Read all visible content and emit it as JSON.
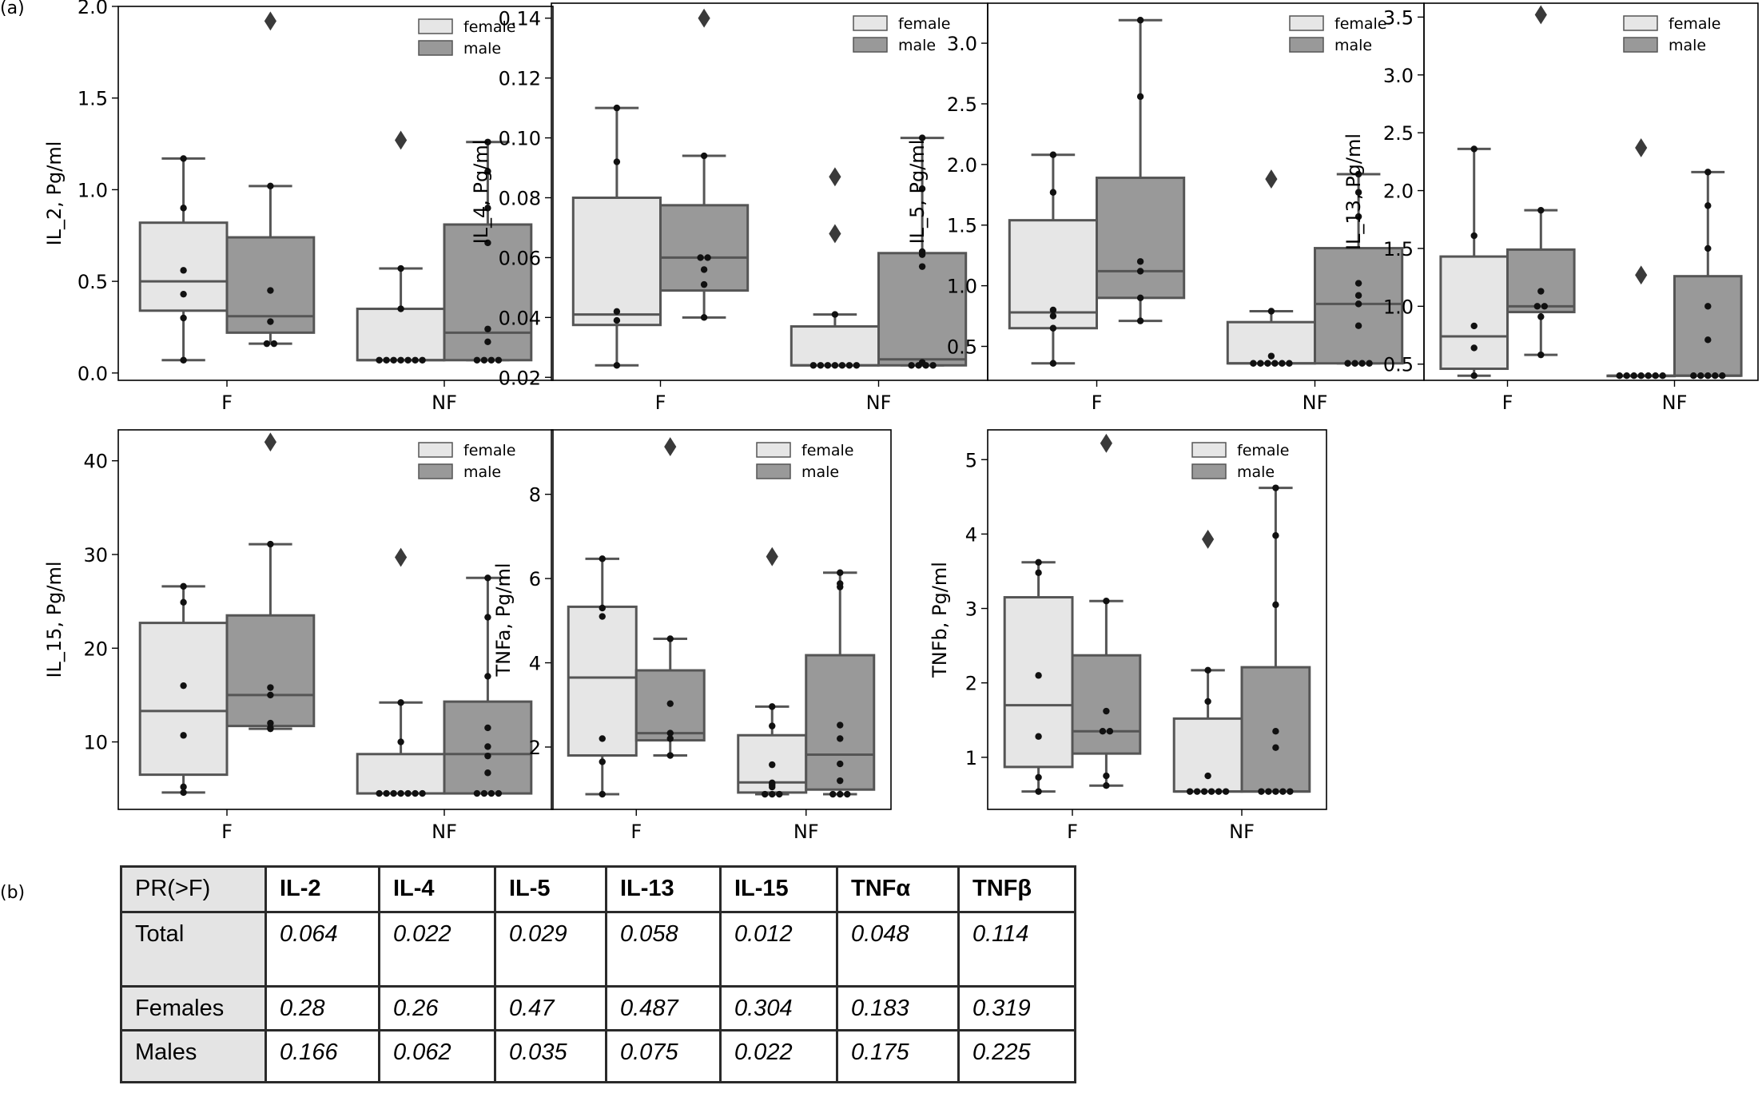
{
  "panel_labels": {
    "a": "(a)",
    "b": "(b)"
  },
  "legend": {
    "female": "female",
    "male": "male"
  },
  "colors": {
    "female": "#e6e6e6",
    "male": "#999999",
    "stroke": "#555555",
    "point": "#111111"
  },
  "chart_data": [
    {
      "type": "box",
      "ylabel": "IL_2, Pg/ml",
      "categories": [
        "F",
        "NF"
      ],
      "ylim": [
        -0.04,
        2.0
      ],
      "yticks": [
        0.0,
        0.5,
        1.0,
        1.5,
        2.0
      ],
      "tick_labels": [
        "0.0",
        "0.5",
        "1.0",
        "1.5",
        "2.0"
      ],
      "series": [
        {
          "name": "female",
          "boxes": [
            {
              "category": "F",
              "q1": 0.34,
              "median": 0.5,
              "q3": 0.82,
              "whislo": 0.07,
              "whishi": 1.17,
              "fliers": [],
              "points": [
                0.07,
                0.3,
                0.43,
                0.56,
                0.9,
                1.17
              ]
            },
            {
              "category": "NF",
              "q1": 0.07,
              "median": 0.07,
              "q3": 0.35,
              "whislo": 0.07,
              "whishi": 0.57,
              "fliers": [
                1.27
              ],
              "points": [
                0.07,
                0.07,
                0.07,
                0.07,
                0.07,
                0.07,
                0.07,
                0.35,
                0.57
              ]
            }
          ]
        },
        {
          "name": "male",
          "boxes": [
            {
              "category": "F",
              "q1": 0.22,
              "median": 0.31,
              "q3": 0.74,
              "whislo": 0.16,
              "whishi": 1.02,
              "fliers": [
                1.92
              ],
              "points": [
                0.16,
                0.16,
                0.28,
                0.45,
                1.02
              ]
            },
            {
              "category": "NF",
              "q1": 0.07,
              "median": 0.22,
              "q3": 0.81,
              "whislo": 0.07,
              "whishi": 1.26,
              "fliers": [],
              "points": [
                0.07,
                0.07,
                0.07,
                0.07,
                0.17,
                0.24,
                0.71,
                0.9,
                1.1,
                1.26
              ]
            }
          ]
        }
      ]
    },
    {
      "type": "box",
      "ylabel": "IL_4, Pg/ml",
      "categories": [
        "F",
        "NF"
      ],
      "ylim": [
        0.019,
        0.145
      ],
      "yticks": [
        0.02,
        0.04,
        0.06,
        0.08,
        0.1,
        0.12,
        0.14
      ],
      "tick_labels": [
        "0.02",
        "0.04",
        "0.06",
        "0.08",
        "0.10",
        "0.12",
        "0.14"
      ],
      "series": [
        {
          "name": "female",
          "boxes": [
            {
              "category": "F",
              "q1": 0.0375,
              "median": 0.041,
              "q3": 0.08,
              "whislo": 0.024,
              "whishi": 0.11,
              "fliers": [],
              "points": [
                0.024,
                0.039,
                0.042,
                0.092,
                0.11
              ]
            },
            {
              "category": "NF",
              "q1": 0.024,
              "median": 0.024,
              "q3": 0.037,
              "whislo": 0.024,
              "whishi": 0.041,
              "fliers": [
                0.068,
                0.087
              ],
              "points": [
                0.024,
                0.024,
                0.024,
                0.024,
                0.024,
                0.024,
                0.024,
                0.041
              ]
            }
          ]
        },
        {
          "name": "male",
          "boxes": [
            {
              "category": "F",
              "q1": 0.049,
              "median": 0.06,
              "q3": 0.0775,
              "whislo": 0.04,
              "whishi": 0.094,
              "fliers": [
                0.14
              ],
              "points": [
                0.04,
                0.051,
                0.056,
                0.06,
                0.06,
                0.094
              ]
            },
            {
              "category": "NF",
              "q1": 0.024,
              "median": 0.026,
              "q3": 0.0615,
              "whislo": 0.024,
              "whishi": 0.1,
              "fliers": [],
              "points": [
                0.024,
                0.024,
                0.024,
                0.024,
                0.025,
                0.057,
                0.061,
                0.062,
                0.083,
                0.1
              ]
            }
          ]
        }
      ]
    },
    {
      "type": "box",
      "ylabel": "IL_5, Pg/ml",
      "categories": [
        "F",
        "NF"
      ],
      "ylim": [
        0.22,
        3.33
      ],
      "yticks": [
        0.5,
        1.0,
        1.5,
        2.0,
        2.5,
        3.0
      ],
      "tick_labels": [
        "0.5",
        "1.0",
        "1.5",
        "2.0",
        "2.5",
        "3.0"
      ],
      "series": [
        {
          "name": "female",
          "boxes": [
            {
              "category": "F",
              "q1": 0.65,
              "median": 0.78,
              "q3": 1.54,
              "whislo": 0.36,
              "whishi": 2.08,
              "fliers": [],
              "points": [
                0.36,
                0.65,
                0.75,
                0.8,
                1.77,
                2.08
              ]
            },
            {
              "category": "NF",
              "q1": 0.36,
              "median": 0.36,
              "q3": 0.7,
              "whislo": 0.36,
              "whishi": 0.79,
              "fliers": [
                1.88
              ],
              "points": [
                0.36,
                0.36,
                0.36,
                0.36,
                0.36,
                0.36,
                0.42,
                0.79
              ]
            }
          ]
        },
        {
          "name": "male",
          "boxes": [
            {
              "category": "F",
              "q1": 0.9,
              "median": 1.12,
              "q3": 1.89,
              "whislo": 0.71,
              "whishi": 3.19,
              "fliers": [],
              "points": [
                0.71,
                0.9,
                1.12,
                1.2,
                2.56,
                3.19
              ]
            },
            {
              "category": "NF",
              "q1": 0.36,
              "median": 0.85,
              "q3": 1.31,
              "whislo": 0.36,
              "whishi": 1.92,
              "fliers": [],
              "points": [
                0.36,
                0.36,
                0.36,
                0.36,
                0.67,
                0.85,
                0.92,
                1.02,
                1.57,
                1.77,
                1.92
              ]
            }
          ]
        }
      ]
    },
    {
      "type": "box",
      "ylabel": "IL_13, Pg/ml",
      "categories": [
        "F",
        "NF"
      ],
      "ylim": [
        0.36,
        3.62
      ],
      "yticks": [
        0.5,
        1.0,
        1.5,
        2.0,
        2.5,
        3.0,
        3.5
      ],
      "tick_labels": [
        "0.5",
        "1.0",
        "1.5",
        "2.0",
        "2.5",
        "3.0",
        "3.5"
      ],
      "series": [
        {
          "name": "female",
          "boxes": [
            {
              "category": "F",
              "q1": 0.46,
              "median": 0.74,
              "q3": 1.43,
              "whislo": 0.4,
              "whishi": 2.36,
              "fliers": [],
              "points": [
                0.4,
                0.64,
                0.83,
                1.61,
                2.36
              ]
            },
            {
              "category": "NF",
              "q1": 0.4,
              "median": 0.4,
              "q3": 0.4,
              "whislo": 0.4,
              "whishi": 0.4,
              "fliers": [
                1.27,
                2.37
              ],
              "points": [
                0.4,
                0.4,
                0.4,
                0.4,
                0.4,
                0.4,
                0.4
              ]
            }
          ]
        },
        {
          "name": "male",
          "boxes": [
            {
              "category": "F",
              "q1": 0.95,
              "median": 1.0,
              "q3": 1.49,
              "whislo": 0.58,
              "whishi": 1.83,
              "fliers": [
                3.52
              ],
              "points": [
                0.58,
                0.91,
                1.0,
                1.0,
                1.13,
                1.83
              ]
            },
            {
              "category": "NF",
              "q1": 0.4,
              "median": 0.4,
              "q3": 1.26,
              "whislo": 0.4,
              "whishi": 2.16,
              "fliers": [],
              "points": [
                0.4,
                0.4,
                0.4,
                0.4,
                0.4,
                0.71,
                1.0,
                1.5,
                1.87,
                2.16
              ]
            }
          ]
        }
      ]
    },
    {
      "type": "box",
      "ylabel": "IL_15, Pg/ml",
      "categories": [
        "F",
        "NF"
      ],
      "ylim": [
        2.8,
        43.3
      ],
      "yticks": [
        10,
        20,
        30,
        40
      ],
      "tick_labels": [
        "10",
        "20",
        "30",
        "40"
      ],
      "series": [
        {
          "name": "female",
          "boxes": [
            {
              "category": "F",
              "q1": 6.5,
              "median": 13.3,
              "q3": 22.7,
              "whislo": 4.6,
              "whishi": 26.6,
              "fliers": [],
              "points": [
                4.6,
                5.2,
                10.7,
                16.0,
                24.9,
                26.6
              ]
            },
            {
              "category": "NF",
              "q1": 4.5,
              "median": 4.5,
              "q3": 8.7,
              "whislo": 4.5,
              "whishi": 14.2,
              "fliers": [
                29.7
              ],
              "points": [
                4.5,
                4.5,
                4.5,
                4.5,
                4.5,
                4.5,
                4.5,
                10.0,
                14.2
              ]
            }
          ]
        },
        {
          "name": "male",
          "boxes": [
            {
              "category": "F",
              "q1": 11.7,
              "median": 15.0,
              "q3": 23.5,
              "whislo": 11.4,
              "whishi": 31.1,
              "fliers": [
                42.0
              ],
              "points": [
                11.4,
                11.5,
                12.0,
                15.0,
                15.8,
                31.1
              ]
            },
            {
              "category": "NF",
              "q1": 4.5,
              "median": 8.7,
              "q3": 14.3,
              "whislo": 4.5,
              "whishi": 27.5,
              "fliers": [],
              "points": [
                4.5,
                4.5,
                4.5,
                4.5,
                6.7,
                8.5,
                9.5,
                11.5,
                17.0,
                23.3,
                27.5
              ]
            }
          ]
        }
      ]
    },
    {
      "type": "box",
      "ylabel": "TNFa, Pg/ml",
      "categories": [
        "F",
        "NF"
      ],
      "ylim": [
        0.52,
        9.53
      ],
      "yticks": [
        2,
        4,
        6,
        8
      ],
      "tick_labels": [
        "2",
        "4",
        "6",
        "8"
      ],
      "series": [
        {
          "name": "female",
          "boxes": [
            {
              "category": "F",
              "q1": 1.8,
              "median": 3.65,
              "q3": 5.33,
              "whislo": 0.88,
              "whishi": 6.47,
              "fliers": [],
              "points": [
                0.88,
                1.65,
                2.2,
                5.1,
                5.3,
                6.47
              ]
            },
            {
              "category": "NF",
              "q1": 0.92,
              "median": 1.16,
              "q3": 2.28,
              "whislo": 0.88,
              "whishi": 2.96,
              "fliers": [
                6.52
              ],
              "points": [
                0.88,
                0.88,
                0.88,
                1.05,
                1.1,
                1.15,
                1.58,
                2.5,
                2.96
              ]
            }
          ]
        },
        {
          "name": "male",
          "boxes": [
            {
              "category": "F",
              "q1": 2.16,
              "median": 2.33,
              "q3": 3.82,
              "whislo": 1.8,
              "whishi": 4.57,
              "fliers": [
                9.13
              ],
              "points": [
                1.8,
                2.2,
                2.33,
                3.03,
                4.57
              ]
            },
            {
              "category": "NF",
              "q1": 0.99,
              "median": 1.82,
              "q3": 4.18,
              "whislo": 0.88,
              "whishi": 6.14,
              "fliers": [],
              "points": [
                0.88,
                0.88,
                0.88,
                1.2,
                1.6,
                2.2,
                2.52,
                5.8,
                5.88,
                6.14
              ]
            }
          ]
        }
      ]
    },
    {
      "type": "box",
      "ylabel": "TNFb, Pg/ml",
      "categories": [
        "F",
        "NF"
      ],
      "ylim": [
        0.3,
        5.4
      ],
      "yticks": [
        1,
        2,
        3,
        4,
        5
      ],
      "tick_labels": [
        "1",
        "2",
        "3",
        "4",
        "5"
      ],
      "series": [
        {
          "name": "female",
          "boxes": [
            {
              "category": "F",
              "q1": 0.87,
              "median": 1.7,
              "q3": 3.15,
              "whislo": 0.54,
              "whishi": 3.62,
              "fliers": [],
              "points": [
                0.54,
                0.73,
                1.28,
                2.1,
                3.48,
                3.62
              ]
            },
            {
              "category": "NF",
              "q1": 0.54,
              "median": 0.54,
              "q3": 1.52,
              "whislo": 0.54,
              "whishi": 2.17,
              "fliers": [
                3.93
              ],
              "points": [
                0.54,
                0.54,
                0.54,
                0.54,
                0.54,
                0.54,
                0.75,
                1.75,
                2.17
              ]
            }
          ]
        },
        {
          "name": "male",
          "boxes": [
            {
              "category": "F",
              "q1": 1.05,
              "median": 1.35,
              "q3": 2.37,
              "whislo": 0.62,
              "whishi": 3.1,
              "fliers": [
                5.22
              ],
              "points": [
                0.62,
                0.75,
                1.35,
                1.35,
                1.62,
                3.1
              ]
            },
            {
              "category": "NF",
              "q1": 0.54,
              "median": 0.54,
              "q3": 2.21,
              "whislo": 0.54,
              "whishi": 4.62,
              "fliers": [],
              "points": [
                0.54,
                0.54,
                0.54,
                0.54,
                0.54,
                1.13,
                1.35,
                3.05,
                3.98,
                4.62
              ]
            }
          ]
        }
      ]
    }
  ],
  "table": {
    "header": [
      "PR(>F)",
      "IL-2",
      "IL-4",
      "IL-5",
      "IL-13",
      "IL-15",
      "TNFα",
      "TNFβ"
    ],
    "rows": [
      {
        "label": "Total",
        "values": [
          "0.064",
          "0.022",
          "0.029",
          "0.058",
          "0.012",
          "0.048",
          "0.114"
        ]
      },
      {
        "label": "Females",
        "values": [
          "0.28",
          "0.26",
          "0.47",
          "0.487",
          "0.304",
          "0.183",
          "0.319"
        ]
      },
      {
        "label": "Males",
        "values": [
          "0.166",
          "0.062",
          "0.035",
          "0.075",
          "0.022",
          "0.175",
          "0.225"
        ]
      }
    ]
  }
}
